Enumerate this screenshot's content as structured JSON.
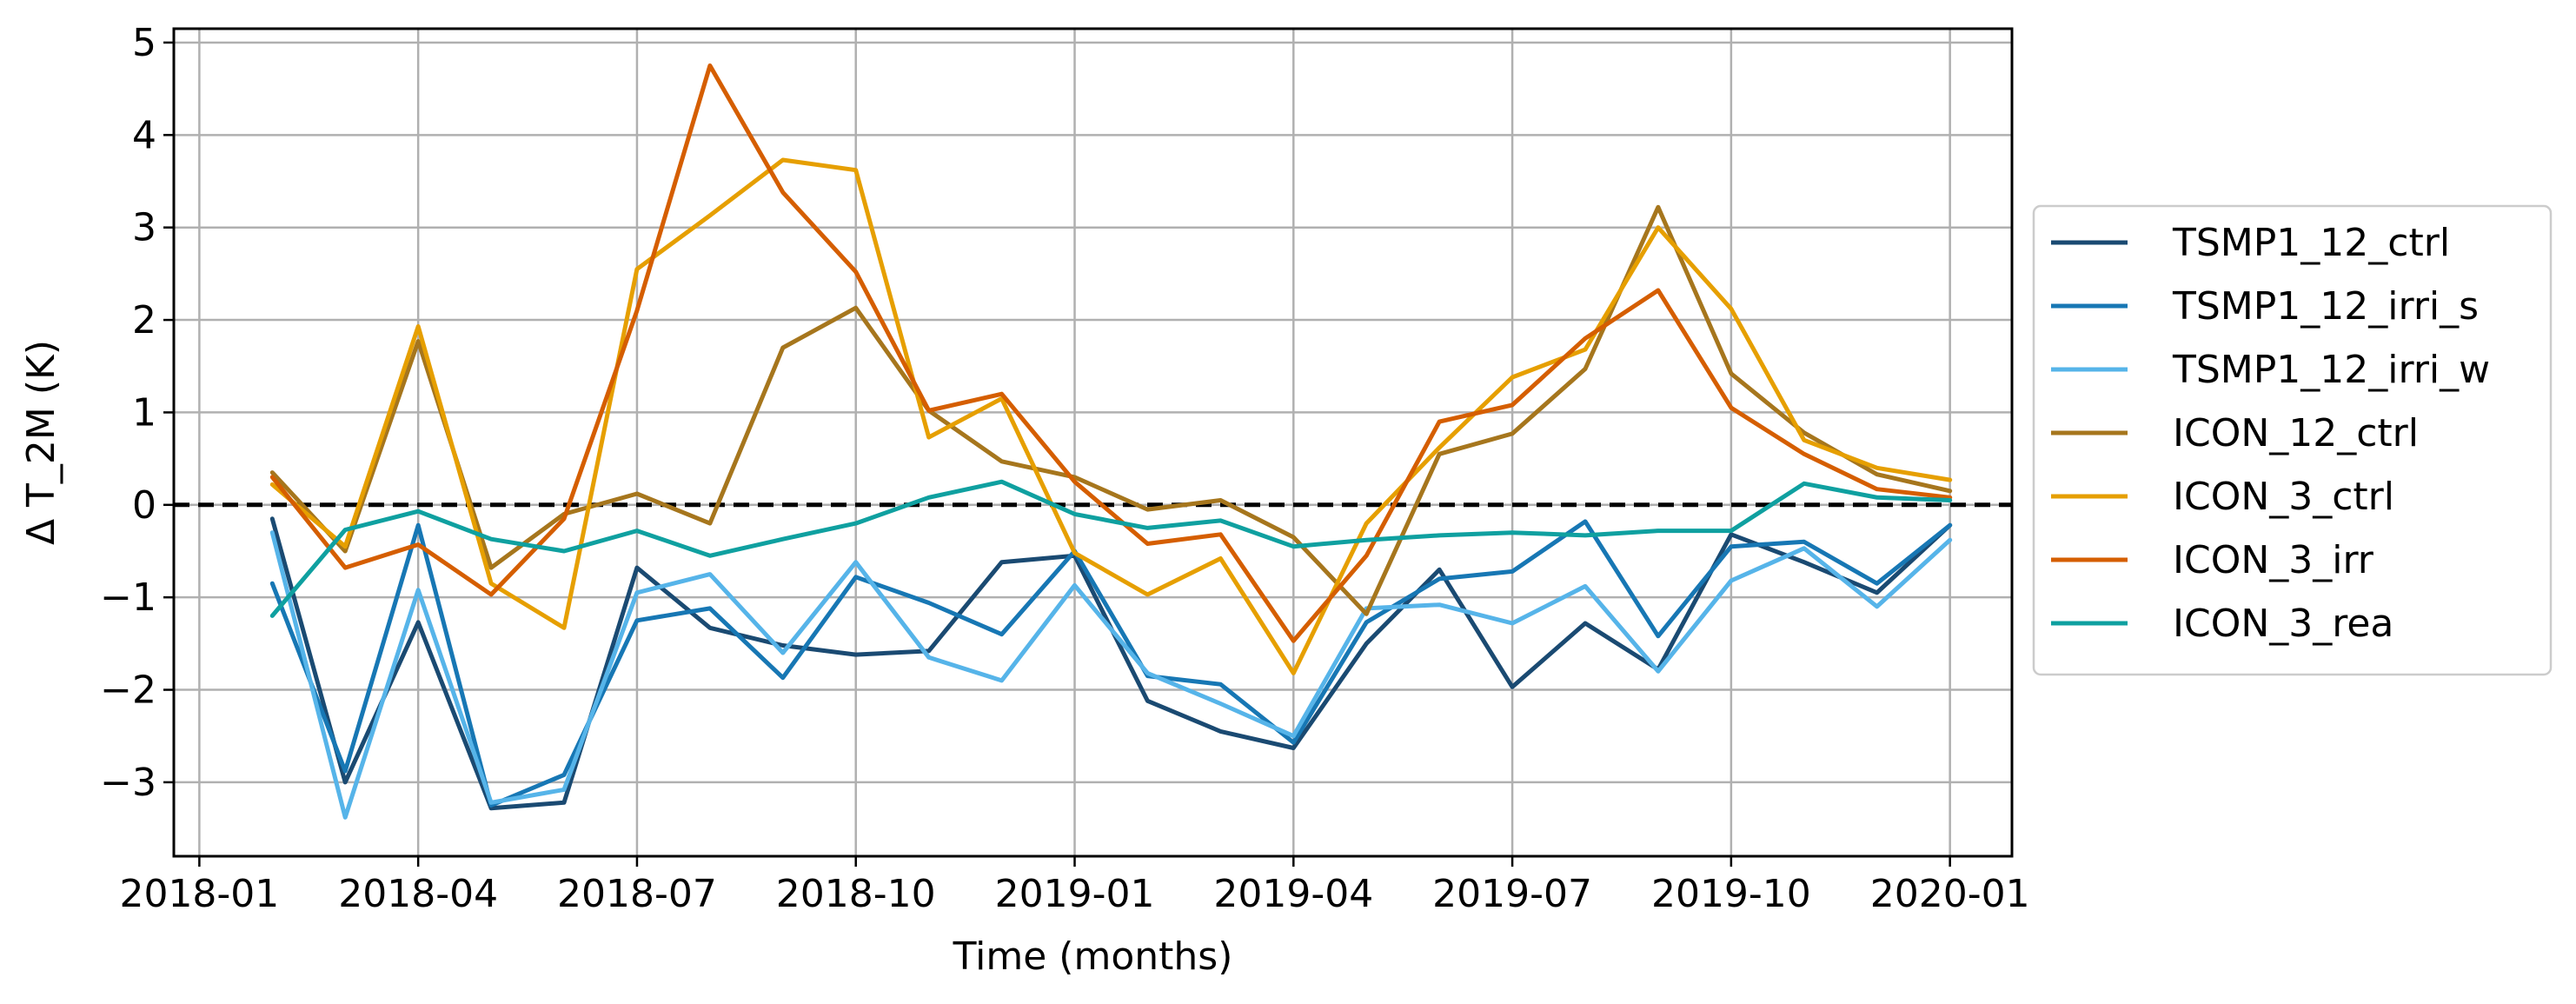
{
  "chart_data": {
    "type": "line",
    "title": "",
    "xlabel": "Time (months)",
    "ylabel": "Δ T_2M (K)",
    "ylim": [
      -3.8,
      5.15
    ],
    "xlim": [
      -0.35,
      24.85
    ],
    "grid": true,
    "legend_position": "outside-right",
    "reference_line": {
      "y": 0,
      "style": "dashed",
      "color": "#000000"
    },
    "x_ticks": [
      {
        "x": 0,
        "label": "2018-01"
      },
      {
        "x": 3,
        "label": "2018-04"
      },
      {
        "x": 6,
        "label": "2018-07"
      },
      {
        "x": 9,
        "label": "2018-10"
      },
      {
        "x": 12,
        "label": "2019-01"
      },
      {
        "x": 15,
        "label": "2019-04"
      },
      {
        "x": 18,
        "label": "2019-07"
      },
      {
        "x": 21,
        "label": "2019-10"
      },
      {
        "x": 24,
        "label": "2020-01"
      }
    ],
    "y_ticks": [
      {
        "y": -3,
        "label": "−3"
      },
      {
        "y": -2,
        "label": "−2"
      },
      {
        "y": -1,
        "label": "−1"
      },
      {
        "y": 0,
        "label": "0"
      },
      {
        "y": 1,
        "label": "1"
      },
      {
        "y": 2,
        "label": "2"
      },
      {
        "y": 3,
        "label": "3"
      },
      {
        "y": 4,
        "label": "4"
      },
      {
        "y": 5,
        "label": "5"
      }
    ],
    "x": [
      1,
      2,
      3,
      4,
      5,
      6,
      7,
      8,
      9,
      10,
      11,
      12,
      13,
      14,
      15,
      16,
      17,
      18,
      19,
      20,
      21,
      22,
      23,
      24
    ],
    "series": [
      {
        "name": "TSMP1_12_ctrl",
        "color": "#1a4a72",
        "values": [
          -0.15,
          -3.0,
          -1.27,
          -3.28,
          -3.22,
          -0.68,
          -1.33,
          -1.52,
          -1.62,
          -1.58,
          -0.62,
          -0.55,
          -2.12,
          -2.45,
          -2.63,
          -1.5,
          -0.7,
          -1.97,
          -1.28,
          -1.78,
          -0.32,
          -0.62,
          -0.95,
          -0.22
        ]
      },
      {
        "name": "TSMP1_12_irri_s",
        "color": "#1777b4",
        "values": [
          -0.85,
          -2.88,
          -0.22,
          -3.25,
          -2.92,
          -1.25,
          -1.12,
          -1.87,
          -0.78,
          -1.06,
          -1.4,
          -0.5,
          -1.85,
          -1.94,
          -2.57,
          -1.27,
          -0.8,
          -0.72,
          -0.18,
          -1.42,
          -0.45,
          -0.4,
          -0.85,
          -0.22
        ]
      },
      {
        "name": "TSMP1_12_irri_w",
        "color": "#56b4e9",
        "values": [
          -0.3,
          -3.38,
          -0.92,
          -3.22,
          -3.08,
          -0.95,
          -0.75,
          -1.6,
          -0.62,
          -1.65,
          -1.9,
          -0.87,
          -1.82,
          -2.15,
          -2.5,
          -1.12,
          -1.08,
          -1.28,
          -0.88,
          -1.8,
          -0.82,
          -0.47,
          -1.1,
          -0.38
        ]
      },
      {
        "name": "ICON_12_ctrl",
        "color": "#a6761d",
        "values": [
          0.35,
          -0.5,
          1.77,
          -0.68,
          -0.1,
          0.12,
          -0.2,
          1.7,
          2.13,
          1.02,
          0.47,
          0.3,
          -0.05,
          0.05,
          -0.35,
          -1.18,
          0.55,
          0.77,
          1.47,
          3.22,
          1.42,
          0.78,
          0.33,
          0.15
        ]
      },
      {
        "name": "ICON_3_ctrl",
        "color": "#e69f00",
        "values": [
          0.22,
          -0.45,
          1.93,
          -0.85,
          -1.33,
          2.55,
          3.13,
          3.73,
          3.62,
          0.73,
          1.15,
          -0.52,
          -0.97,
          -0.58,
          -1.82,
          -0.2,
          0.62,
          1.38,
          1.68,
          3.0,
          2.12,
          0.7,
          0.4,
          0.27
        ]
      },
      {
        "name": "ICON_3_irr",
        "color": "#d55e00",
        "values": [
          0.3,
          -0.68,
          -0.43,
          -0.97,
          -0.15,
          2.1,
          4.75,
          3.38,
          2.52,
          1.02,
          1.2,
          0.25,
          -0.42,
          -0.32,
          -1.47,
          -0.55,
          0.9,
          1.08,
          1.8,
          2.32,
          1.05,
          0.55,
          0.17,
          0.08
        ]
      },
      {
        "name": "ICON_3_rea",
        "color": "#0fa0a0",
        "values": [
          -1.2,
          -0.27,
          -0.07,
          -0.37,
          -0.5,
          -0.28,
          -0.55,
          -0.37,
          -0.2,
          0.08,
          0.25,
          -0.1,
          -0.25,
          -0.17,
          -0.45,
          -0.38,
          -0.33,
          -0.3,
          -0.33,
          -0.28,
          -0.28,
          0.23,
          0.08,
          0.05
        ]
      }
    ]
  }
}
